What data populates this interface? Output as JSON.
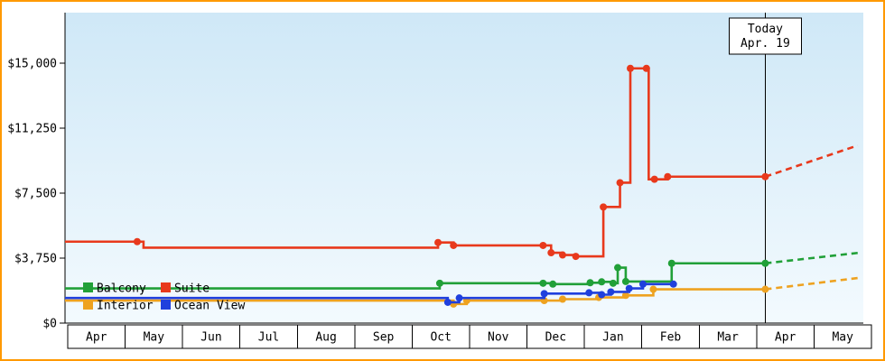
{
  "frame_color": "#ff9900",
  "plot": {
    "bg_top": "#cfe8f7",
    "bg_bottom": "#f3fafe"
  },
  "chart_data": {
    "type": "line",
    "interpolation": "step-after",
    "point_format": "[month_unit, price_usd, marker_dot]",
    "x_unit": "month index; 0 = start of first April, each integer = one month",
    "ylim": [
      0,
      15000
    ],
    "y_ticks": [
      {
        "value": 0,
        "label": "$0"
      },
      {
        "value": 3750,
        "label": "$3,750"
      },
      {
        "value": 7500,
        "label": "$7,500"
      },
      {
        "value": 11250,
        "label": "$11,250"
      },
      {
        "value": 15000,
        "label": "$15,000"
      }
    ],
    "x_tick_labels": [
      "Apr",
      "May",
      "Jun",
      "Jul",
      "Aug",
      "Sep",
      "Oct",
      "Nov",
      "Dec",
      "Jan",
      "Feb",
      "Mar",
      "Apr",
      "May"
    ],
    "today_line": {
      "month_unit": 12.15,
      "label_line1": "Today",
      "label_line2": "Apr. 19"
    },
    "legend_rows": [
      [
        "Balcony",
        "Suite"
      ],
      [
        "Interior",
        "Ocean View"
      ]
    ],
    "legend_position": "inside plot, bottom-left",
    "series": [
      {
        "name": "Interior",
        "color": "#eea220",
        "points": [
          [
            0,
            1300,
            0
          ],
          [
            6.72,
            1100,
            1
          ],
          [
            6.95,
            1300,
            1
          ],
          [
            8.3,
            1300,
            1
          ],
          [
            8.62,
            1380,
            1
          ],
          [
            9.25,
            1480,
            1
          ],
          [
            9.72,
            1600,
            1
          ],
          [
            10.2,
            1950,
            1
          ],
          [
            12.15,
            1950,
            1
          ]
        ],
        "forecast_dashed": [
          [
            12.15,
            1950
          ],
          [
            13.76,
            2600
          ]
        ]
      },
      {
        "name": "Balcony",
        "color": "#21a038",
        "points": [
          [
            0,
            2000,
            0
          ],
          [
            6.48,
            2300,
            1
          ],
          [
            8.28,
            2300,
            1
          ],
          [
            8.45,
            2250,
            1
          ],
          [
            9.1,
            2330,
            1
          ],
          [
            9.3,
            2380,
            1
          ],
          [
            9.5,
            2300,
            1
          ],
          [
            9.58,
            3200,
            1
          ],
          [
            9.72,
            2400,
            1
          ],
          [
            10.52,
            3450,
            1
          ],
          [
            12.15,
            3450,
            1
          ]
        ],
        "forecast_dashed": [
          [
            12.15,
            3450
          ],
          [
            13.76,
            4050
          ]
        ]
      },
      {
        "name": "Ocean View",
        "color": "#2040dd",
        "points": [
          [
            0,
            1450,
            0
          ],
          [
            6.62,
            1200,
            1
          ],
          [
            6.82,
            1450,
            1
          ],
          [
            8.3,
            1700,
            1
          ],
          [
            9.08,
            1750,
            1
          ],
          [
            9.3,
            1640,
            1
          ],
          [
            9.46,
            1800,
            1
          ],
          [
            9.78,
            2000,
            1
          ],
          [
            10.02,
            2250,
            1
          ],
          [
            10.55,
            2250,
            1
          ]
        ]
      },
      {
        "name": "Suite",
        "color": "#e8391c",
        "points": [
          [
            0,
            4700,
            0
          ],
          [
            1.21,
            4700,
            1
          ],
          [
            1.32,
            4350,
            0
          ],
          [
            6.45,
            4650,
            1
          ],
          [
            6.72,
            4480,
            1
          ],
          [
            8.28,
            4480,
            1
          ],
          [
            8.42,
            4060,
            1
          ],
          [
            8.62,
            3930,
            1
          ],
          [
            8.85,
            3850,
            1
          ],
          [
            9.33,
            6700,
            1
          ],
          [
            9.62,
            8100,
            1
          ],
          [
            9.8,
            14700,
            1
          ],
          [
            10.08,
            14700,
            1
          ],
          [
            10.12,
            8300,
            0
          ],
          [
            10.22,
            8300,
            1
          ],
          [
            10.45,
            8450,
            1
          ],
          [
            12.15,
            8450,
            1
          ]
        ],
        "forecast_dashed": [
          [
            12.15,
            8450
          ],
          [
            13.76,
            10250
          ]
        ]
      }
    ]
  }
}
